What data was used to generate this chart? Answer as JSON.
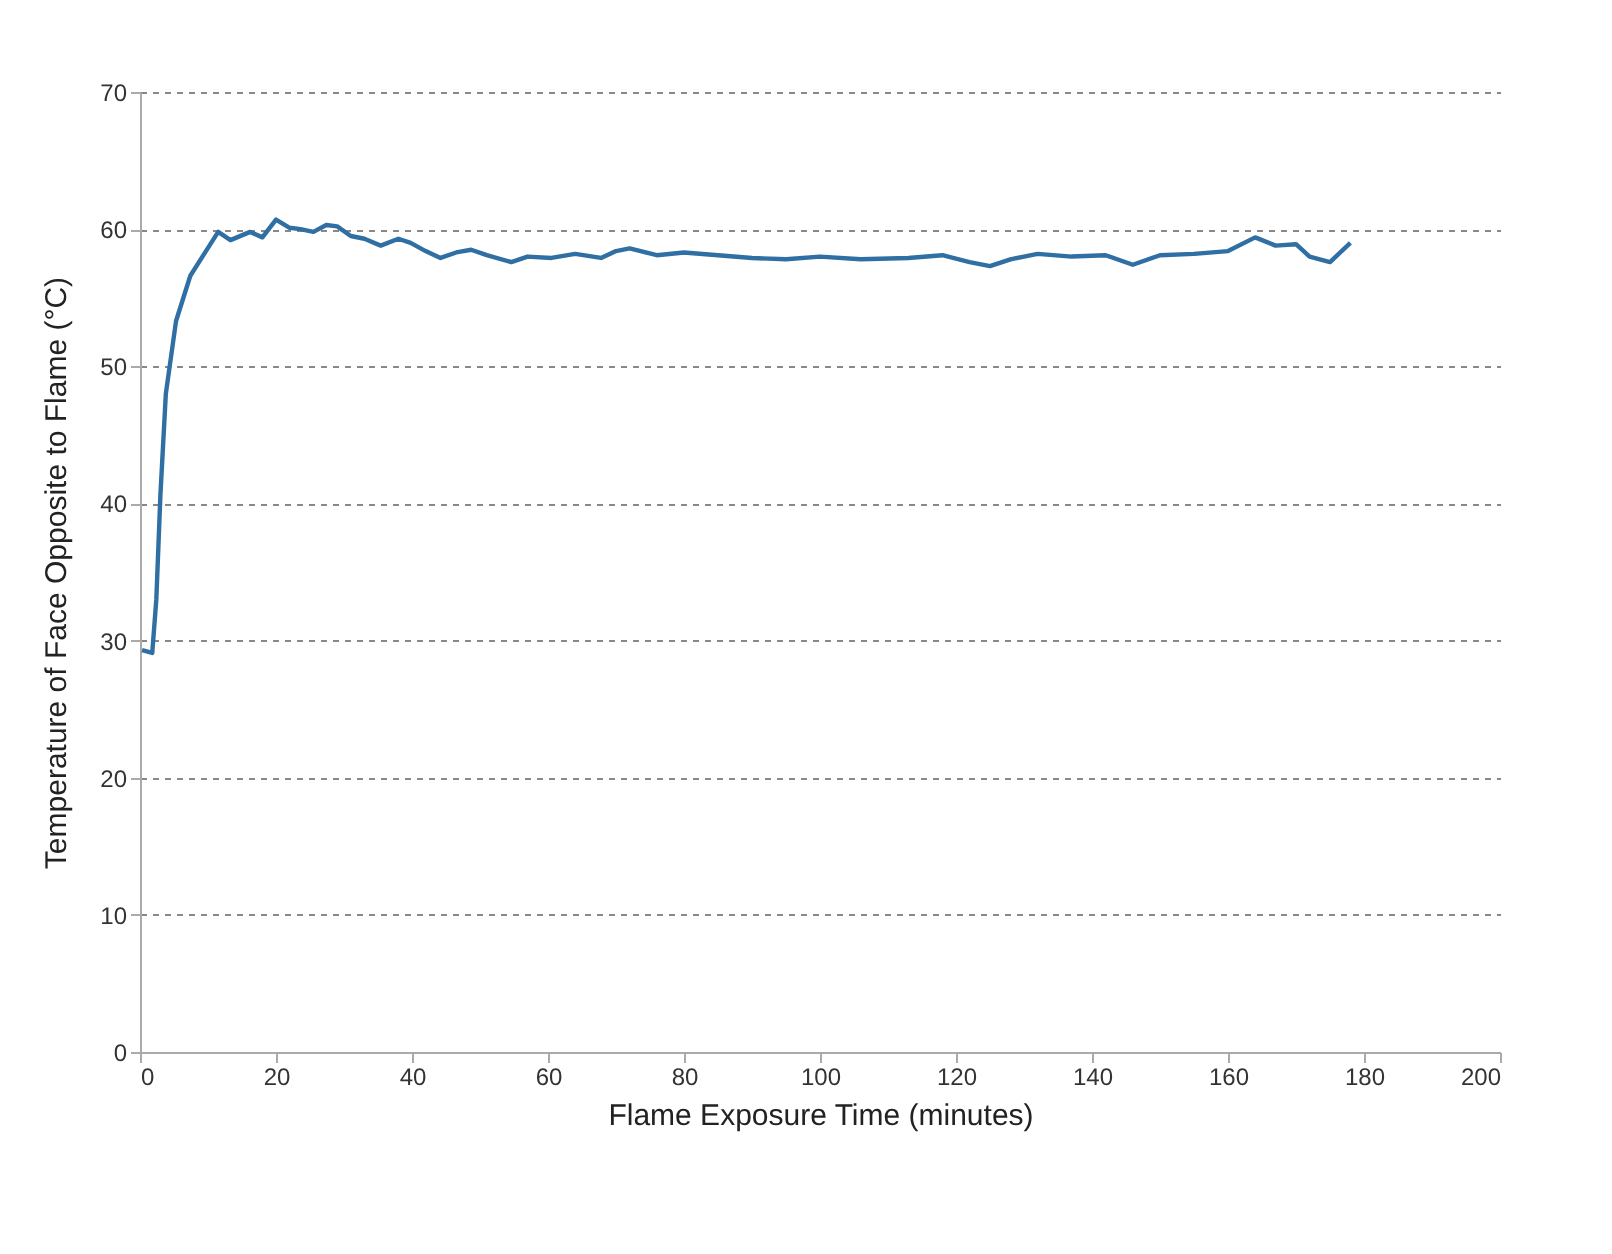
{
  "chart_data": {
    "type": "line",
    "xlabel": "Flame Exposure Time (minutes)",
    "ylabel": "Temperature of Face Opposite to Flame (°C)",
    "xlim": [
      0,
      200
    ],
    "xticks": [
      0,
      20,
      40,
      60,
      80,
      100,
      120,
      140,
      160,
      180,
      200
    ],
    "ylim": [
      0,
      70
    ],
    "yticks": [
      0,
      10,
      20,
      30,
      40,
      50,
      60,
      70
    ],
    "grid": "y",
    "marker": "none",
    "series": [
      {
        "color": "#2f6fa3",
        "x": [
          0.3,
          1.8,
          2.4,
          3,
          3.8,
          5.3,
          7.4,
          9.7,
          11.5,
          13.3,
          16.2,
          18,
          20,
          22,
          23.6,
          25.5,
          27.4,
          29,
          31,
          33,
          35.4,
          38,
          39.8,
          42,
          44.2,
          46.5,
          48.7,
          51,
          54.6,
          57,
          60.5,
          64,
          67.8,
          70,
          72,
          76,
          80,
          85,
          90,
          95,
          100,
          106,
          113,
          118,
          122,
          125,
          128,
          132,
          137,
          142,
          146,
          150,
          155,
          160,
          164,
          167,
          170,
          172,
          175,
          178
        ],
        "values": [
          29.3,
          29.1,
          33,
          40.6,
          48,
          53.3,
          56.6,
          58.4,
          59.8,
          59.2,
          59.8,
          59.4,
          60.7,
          60.1,
          60,
          59.8,
          60.3,
          60.2,
          59.5,
          59.3,
          58.8,
          59.3,
          59,
          58.4,
          57.9,
          58.3,
          58.5,
          58.1,
          57.6,
          58,
          57.9,
          58.2,
          57.9,
          58.4,
          58.6,
          58.1,
          58.3,
          58.1,
          57.9,
          57.8,
          58,
          57.8,
          57.9,
          58.1,
          57.6,
          57.3,
          57.8,
          58.2,
          58,
          58.1,
          57.4,
          58.1,
          58.2,
          58.4,
          59.4,
          58.8,
          58.9,
          58,
          57.6,
          59
        ]
      }
    ]
  }
}
